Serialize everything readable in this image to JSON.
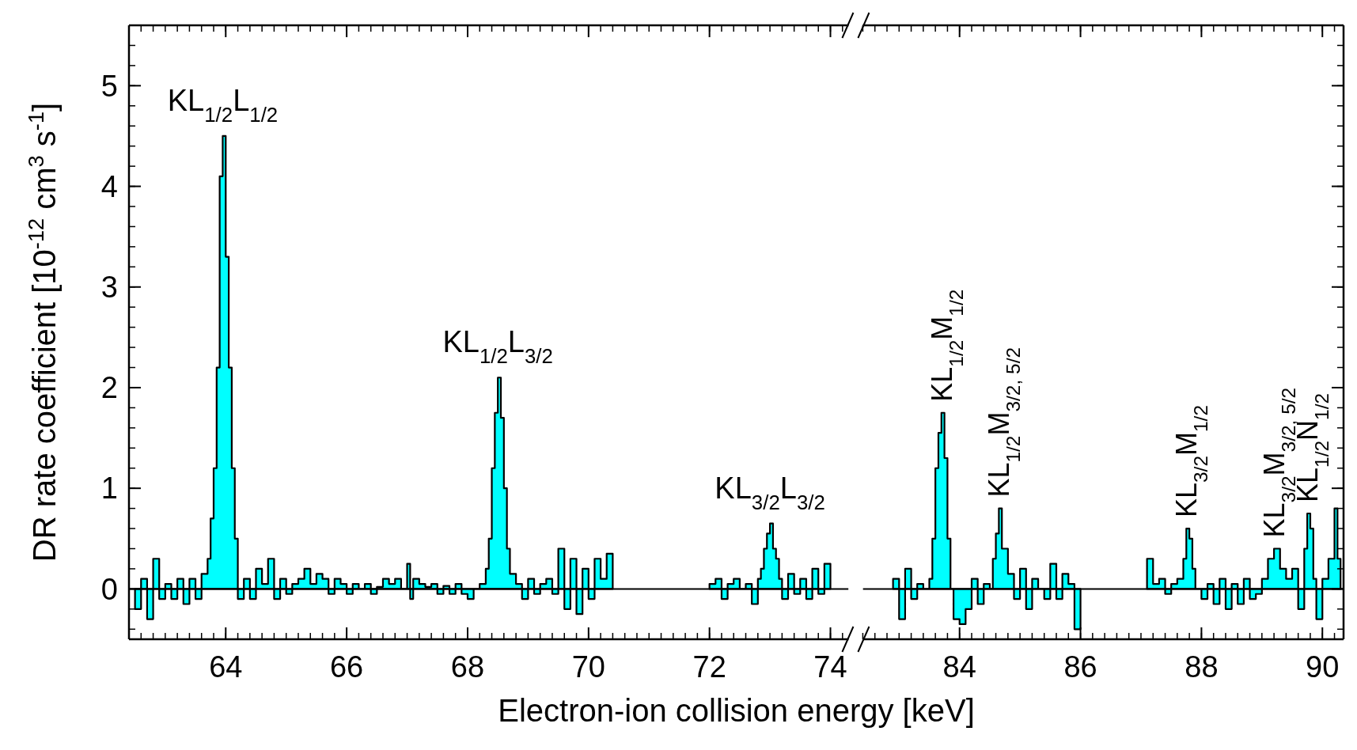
{
  "chart_data": [
    {
      "type": "area",
      "ylabel": "DR rate coefficient [10$^{-12}$ cm$^{3}$ s$^{-1}$]",
      "xlabel": "Electron-ion collision energy [keV]",
      "xlim": [
        62.4,
        74.3
      ],
      "xticks": [
        64,
        66,
        68,
        70,
        72,
        74
      ],
      "ylim": [
        -0.5,
        5.6
      ],
      "yticks": [
        0,
        1,
        2,
        3,
        4,
        5
      ],
      "ref_lines": [
        {
          "axis": "y",
          "value": 0
        }
      ],
      "series": [
        {
          "color": "#00ffff",
          "x": [
            62.5,
            62.6,
            62.7,
            62.8,
            62.9,
            63.0,
            63.1,
            63.2,
            63.3,
            63.4,
            63.5,
            63.6,
            63.7,
            63.75,
            63.8,
            63.85,
            63.9,
            63.95,
            64.0,
            64.05,
            64.1,
            64.15,
            64.2,
            64.3,
            64.4,
            64.5,
            64.6,
            64.7,
            64.8,
            64.9,
            65.0,
            65.1,
            65.2,
            65.3,
            65.4,
            65.5,
            65.6,
            65.7,
            65.8,
            65.9,
            66.0,
            66.1,
            66.2,
            66.3,
            66.4,
            66.5,
            66.6,
            66.7,
            66.8,
            66.9,
            67.0,
            67.05,
            67.1,
            67.2,
            67.3,
            67.4,
            67.5,
            67.6,
            67.7,
            67.8,
            67.9,
            68.0,
            68.1,
            68.2,
            68.3,
            68.35,
            68.4,
            68.45,
            68.5,
            68.55,
            68.6,
            68.65,
            68.7,
            68.8,
            68.9,
            69.0,
            69.1,
            69.2,
            69.3,
            69.4,
            69.5,
            69.6,
            69.7,
            69.8,
            69.9,
            70.0,
            70.1,
            70.2,
            70.3,
            70.4,
            71.0,
            72.0,
            72.1,
            72.2,
            72.3,
            72.4,
            72.5,
            72.6,
            72.7,
            72.8,
            72.85,
            72.9,
            72.95,
            73.0,
            73.05,
            73.1,
            73.15,
            73.2,
            73.3,
            73.4,
            73.5,
            73.6,
            73.7,
            73.8,
            73.9,
            74.0
          ],
          "values": [
            -0.2,
            0.1,
            -0.3,
            0.3,
            -0.1,
            0.05,
            -0.1,
            0.1,
            -0.15,
            0.1,
            -0.1,
            0.15,
            0.3,
            0.7,
            1.2,
            2.2,
            4.1,
            4.5,
            3.3,
            2.2,
            1.2,
            0.5,
            -0.1,
            0.1,
            -0.1,
            0.2,
            0.05,
            0.3,
            -0.1,
            0.1,
            -0.05,
            0.05,
            0.1,
            0.2,
            0.05,
            0.15,
            0.1,
            -0.05,
            0.1,
            0.05,
            -0.05,
            0.05,
            0.0,
            0.05,
            -0.05,
            0.02,
            0.1,
            0.05,
            0.1,
            0.0,
            0.25,
            -0.1,
            0.1,
            0.05,
            0.02,
            0.05,
            -0.05,
            0.03,
            -0.05,
            0.05,
            -0.05,
            -0.1,
            0.0,
            0.05,
            0.2,
            0.5,
            1.2,
            1.75,
            2.1,
            1.7,
            1.0,
            0.4,
            0.15,
            0.05,
            -0.1,
            0.1,
            -0.05,
            0.05,
            0.1,
            -0.05,
            0.4,
            -0.2,
            0.3,
            -0.25,
            0.2,
            -0.1,
            0.3,
            0.1,
            0.35,
            0.0,
            null,
            0.05,
            0.1,
            -0.1,
            0.05,
            0.1,
            0.0,
            0.05,
            -0.15,
            0.1,
            0.2,
            0.4,
            0.55,
            0.65,
            0.4,
            0.3,
            0.1,
            -0.1,
            0.15,
            -0.05,
            0.1,
            -0.1,
            0.2,
            -0.05,
            0.25,
            0.0
          ]
        }
      ],
      "annotations": [
        {
          "text": "KL$_{1/2}$L$_{1/2}$",
          "x": 63.95,
          "y": 4.5
        },
        {
          "text": "KL$_{1/2}$L$_{3/2}$",
          "x": 68.5,
          "y": 2.1
        },
        {
          "text": "KL$_{3/2}$L$_{3/2}$",
          "x": 73.0,
          "y": 0.65
        }
      ]
    },
    {
      "type": "area",
      "xlim": [
        82.4,
        90.35
      ],
      "xticks": [
        84,
        86,
        88,
        90
      ],
      "ylim": [
        -0.5,
        5.6
      ],
      "yticks": [
        0,
        1,
        2,
        3,
        4,
        5
      ],
      "tick_labels": "x",
      "ref_lines": [
        {
          "axis": "y",
          "value": 0
        }
      ],
      "series": [
        {
          "color": "#00ffff",
          "x": [
            82.9,
            83.0,
            83.1,
            83.2,
            83.3,
            83.4,
            83.5,
            83.55,
            83.6,
            83.65,
            83.7,
            83.75,
            83.8,
            83.85,
            83.9,
            84.0,
            84.1,
            84.2,
            84.3,
            84.4,
            84.5,
            84.55,
            84.6,
            84.65,
            84.7,
            84.8,
            84.9,
            85.0,
            85.1,
            85.2,
            85.3,
            85.4,
            85.5,
            85.6,
            85.7,
            85.8,
            85.9,
            86.0,
            86.5,
            87.1,
            87.2,
            87.3,
            87.4,
            87.5,
            87.6,
            87.7,
            87.75,
            87.8,
            87.85,
            87.9,
            88.0,
            88.1,
            88.2,
            88.3,
            88.4,
            88.5,
            88.6,
            88.7,
            88.8,
            88.9,
            89.0,
            89.1,
            89.2,
            89.3,
            89.4,
            89.5,
            89.6,
            89.7,
            89.75,
            89.8,
            89.85,
            89.9,
            90.0,
            90.1,
            90.2,
            90.25,
            90.3
          ],
          "values": [
            0.1,
            -0.3,
            0.2,
            -0.1,
            0.05,
            0.0,
            0.1,
            0.5,
            1.2,
            1.55,
            1.75,
            1.3,
            0.5,
            0.0,
            -0.3,
            -0.35,
            -0.2,
            0.1,
            -0.15,
            0.05,
            0.0,
            0.3,
            0.55,
            0.8,
            0.4,
            0.15,
            -0.1,
            0.2,
            -0.2,
            0.1,
            0.0,
            -0.1,
            0.25,
            -0.1,
            0.15,
            0.05,
            -0.4,
            0.0,
            null,
            0.3,
            0.05,
            0.1,
            -0.05,
            0.05,
            0.1,
            0.3,
            0.6,
            0.5,
            0.2,
            0.0,
            -0.1,
            0.05,
            -0.15,
            0.1,
            -0.2,
            0.05,
            -0.15,
            0.1,
            -0.1,
            -0.05,
            0.1,
            0.3,
            0.4,
            0.2,
            0.1,
            0.2,
            -0.2,
            0.4,
            0.75,
            0.6,
            0.1,
            -0.3,
            0.1,
            0.3,
            0.8,
            0.3,
            0.1
          ]
        }
      ],
      "annotations": [
        {
          "text": "KL$_{1/2}$M$_{1/2}$",
          "x": 83.7,
          "y": 1.75
        },
        {
          "text": "KL$_{1/2}$M$_{3/2, 5/2}$",
          "x": 84.65,
          "y": 0.8
        },
        {
          "text": "KL$_{3/2}$M$_{1/2}$",
          "x": 87.75,
          "y": 0.6
        },
        {
          "text": "KL$_{3/2}$M$_{3/2, 5/2}$",
          "x": 89.2,
          "y": 0.4
        },
        {
          "text": "KL$_{1/2}$N$_{1/2}$",
          "x": 89.75,
          "y": 0.75
        }
      ]
    }
  ]
}
